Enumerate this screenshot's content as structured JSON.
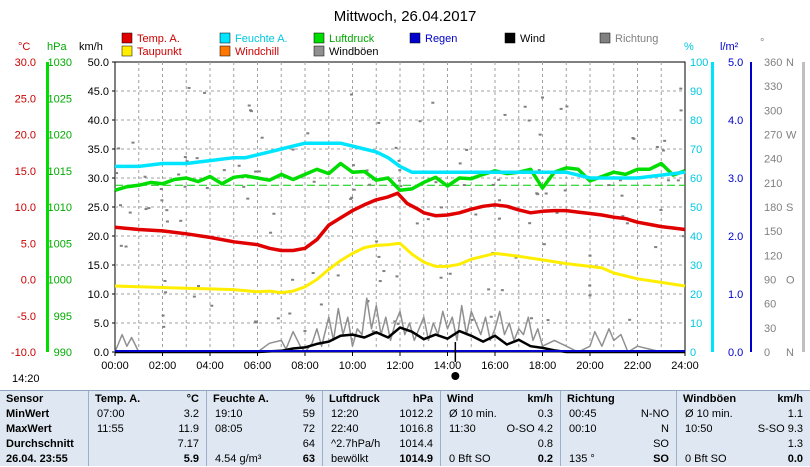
{
  "title": "Mittwoch, 26.04.2017",
  "colors": {
    "temp": "#e00000",
    "dew": "#ffee00",
    "humidity": "#00e5ff",
    "pressure": "#00dd00",
    "wind": "#000000",
    "gust": "#909090",
    "direction": "#808080",
    "rain": "#0000cc",
    "windchill": "#ff7700",
    "plot_bg": "#ffffff",
    "grid": "#a0a0a0",
    "table_bg": "#dfe8f2"
  },
  "legend": [
    {
      "label": "Temp. A.",
      "color": "#e00000",
      "text_color": "#cc0000"
    },
    {
      "label": "Feuchte A.",
      "color": "#00e5ff",
      "text_color": "#00c8e0"
    },
    {
      "label": "Luftdruck",
      "color": "#00dd00",
      "text_color": "#00aa00"
    },
    {
      "label": "Regen",
      "color": "#0000cc",
      "text_color": "#0000cc"
    },
    {
      "label": "Wind",
      "color": "#000000",
      "text_color": "#000000"
    },
    {
      "label": "Richtung",
      "color": "#808080",
      "text_color": "#808080"
    },
    {
      "label": "Taupunkt",
      "color": "#ffee00",
      "text_color": "#cc0000"
    },
    {
      "label": "Windchill",
      "color": "#ff7700",
      "text_color": "#cc0000"
    },
    {
      "label": "Windböen",
      "color": "#909090",
      "text_color": "#000000"
    }
  ],
  "units": {
    "temp": "°C",
    "pressure": "hPa",
    "wind": "km/h",
    "humidity": "%",
    "rain": "l/m²",
    "direction": "°"
  },
  "chart_data": {
    "type": "line",
    "title": "Mittwoch, 26.04.2017",
    "x_ticks": [
      "00:00",
      "02:00",
      "04:00",
      "06:00",
      "08:00",
      "10:00",
      "12:00",
      "14:00",
      "16:00",
      "18:00",
      "20:00",
      "22:00",
      "24:00"
    ],
    "axes": {
      "temp": {
        "label": "°C",
        "min": -10,
        "max": 30,
        "ticks": [
          "-10.0",
          "-5.0",
          "0.0",
          "5.0",
          "10.0",
          "15.0",
          "20.0",
          "25.0",
          "30.0"
        ]
      },
      "pressure": {
        "label": "hPa",
        "min": 990,
        "max": 1030,
        "ticks": [
          "990",
          "995",
          "1000",
          "1005",
          "1010",
          "1015",
          "1020",
          "1025",
          "1030"
        ]
      },
      "wind": {
        "label": "km/h",
        "min": 0,
        "max": 50,
        "ticks": [
          "0.0",
          "5.0",
          "10.0",
          "15.0",
          "20.0",
          "25.0",
          "30.0",
          "35.0",
          "40.0",
          "45.0",
          "50.0"
        ]
      },
      "humidity": {
        "label": "%",
        "min": 0,
        "max": 100,
        "ticks": [
          "0",
          "10",
          "20",
          "30",
          "40",
          "50",
          "60",
          "70",
          "80",
          "90",
          "100"
        ]
      },
      "rain": {
        "label": "l/m²",
        "min": 0,
        "max": 5,
        "ticks": [
          "0.0",
          "1.0",
          "2.0",
          "3.0",
          "4.0",
          "5.0"
        ]
      },
      "direction": {
        "label": "°",
        "min": 0,
        "max": 360,
        "ticks": [
          "0",
          "30",
          "60",
          "90",
          "120",
          "150",
          "180",
          "210",
          "240",
          "270",
          "300",
          "330",
          "360"
        ]
      },
      "compass": [
        "N",
        "O",
        "S",
        "W",
        "N"
      ]
    },
    "series": [
      {
        "name": "Temp. A.",
        "axis": "temp",
        "color": "#e00000",
        "width": 3.5,
        "x": [
          0,
          1,
          2,
          3,
          4,
          5,
          6,
          6.5,
          7,
          7.5,
          8,
          8.5,
          9,
          9.5,
          10,
          10.5,
          11,
          11.5,
          11.9,
          12.3,
          12.7,
          13,
          13.5,
          14,
          14.5,
          15,
          15.5,
          16,
          16.5,
          17,
          17.5,
          18,
          18.5,
          19,
          19.5,
          20,
          20.5,
          21,
          21.5,
          22,
          22.5,
          23,
          23.5,
          24
        ],
        "y": [
          7.2,
          6.9,
          6.7,
          6.3,
          5.8,
          5.2,
          4.8,
          4.3,
          4.0,
          4.0,
          4.3,
          5.5,
          7.5,
          8.5,
          9.5,
          10.3,
          11.0,
          11.4,
          11.9,
          10.5,
          9.8,
          9.2,
          8.8,
          8.9,
          9.2,
          9.7,
          10.1,
          10.3,
          10.1,
          9.6,
          9.2,
          9.4,
          9.5,
          9.5,
          9.3,
          9.1,
          8.9,
          8.6,
          8.4,
          7.9,
          7.6,
          7.3,
          7.1,
          6.9
        ]
      },
      {
        "name": "Taupunkt",
        "axis": "temp",
        "color": "#ffee00",
        "width": 3,
        "x": [
          0,
          1,
          2,
          3,
          4,
          5,
          6,
          6.5,
          7,
          7.5,
          8,
          8.5,
          9,
          9.5,
          10,
          10.5,
          11,
          11.5,
          12,
          12.5,
          13,
          13.5,
          14,
          14.5,
          15,
          15.5,
          16,
          16.5,
          17,
          18,
          19,
          20,
          20.5,
          21,
          22,
          23,
          24
        ],
        "y": [
          -0.9,
          -1.0,
          -1.1,
          -1.2,
          -1.3,
          -1.4,
          -1.7,
          -1.6,
          -1.8,
          -1.6,
          -1.0,
          0.0,
          1.4,
          2.6,
          3.6,
          4.4,
          4.7,
          4.8,
          5.0,
          3.5,
          2.4,
          1.8,
          1.8,
          2.1,
          2.8,
          3.2,
          3.6,
          3.4,
          3.2,
          2.7,
          2.2,
          1.8,
          1.6,
          0.9,
          0.1,
          -0.4,
          -0.9
        ]
      },
      {
        "name": "Feuchte A.",
        "axis": "humidity",
        "color": "#00e5ff",
        "width": 3.5,
        "x": [
          0,
          1,
          2,
          3,
          4,
          5,
          5.5,
          6,
          6.5,
          7,
          7.5,
          8,
          8.5,
          9,
          9.5,
          10,
          10.5,
          11,
          11.5,
          12,
          12.5,
          13,
          14,
          15,
          16,
          17,
          18,
          19,
          20,
          21,
          22,
          23,
          24
        ],
        "y": [
          64,
          64,
          65,
          65,
          66,
          67,
          67,
          68,
          69,
          70,
          71,
          72,
          72,
          72,
          72,
          71,
          70,
          69,
          67,
          64,
          62,
          62,
          62,
          62,
          62,
          62,
          62,
          62,
          60,
          60,
          60,
          61,
          62
        ]
      },
      {
        "name": "Luftdruck",
        "axis": "pressure",
        "color": "#00dd00",
        "width": 3.5,
        "x": [
          0,
          0.5,
          1,
          1.5,
          2,
          2.5,
          3,
          3.5,
          4,
          4.5,
          5,
          5.5,
          6,
          6.5,
          7,
          7.5,
          8,
          8.5,
          9,
          9.5,
          10,
          10.5,
          11,
          11.5,
          12,
          12.5,
          13,
          13.5,
          14,
          14.5,
          15,
          15.5,
          16,
          16.5,
          17,
          17.5,
          18,
          18.5,
          19,
          19.5,
          20,
          20.5,
          21,
          21.5,
          22,
          22.5,
          23,
          23.5,
          24
        ],
        "y": [
          1012.3,
          1012.8,
          1013.0,
          1013.4,
          1013.2,
          1013.8,
          1014.0,
          1013.5,
          1014.2,
          1013.2,
          1014.1,
          1014.3,
          1014.0,
          1013.7,
          1014.5,
          1013.8,
          1014.5,
          1015.2,
          1014.6,
          1016.0,
          1014.8,
          1014.9,
          1013.7,
          1014.0,
          1012.3,
          1012.5,
          1013.4,
          1014.1,
          1012.9,
          1014.0,
          1013.9,
          1014.5,
          1015.0,
          1014.6,
          1014.8,
          1015.2,
          1012.6,
          1014.8,
          1015.4,
          1015.2,
          1013.6,
          1014.2,
          1014.8,
          1014.5,
          1015.2,
          1015.2,
          1016.0,
          1014.4,
          1015.0
        ]
      },
      {
        "name": "Windböen",
        "axis": "wind",
        "color": "#909090",
        "width": 1.5,
        "x": [
          0,
          0.3,
          0.5,
          0.7,
          1,
          2,
          3,
          4,
          5,
          6,
          6.5,
          7,
          7.2,
          7.5,
          7.8,
          8,
          8.3,
          8.5,
          8.7,
          9,
          9.2,
          9.4,
          9.6,
          9.8,
          10,
          10.2,
          10.4,
          10.6,
          10.8,
          11,
          11.2,
          11.4,
          11.6,
          11.8,
          12,
          12.2,
          12.4,
          12.6,
          12.8,
          13,
          13.2,
          13.4,
          13.6,
          13.8,
          14,
          14.2,
          14.4,
          14.6,
          14.8,
          15,
          15.2,
          15.4,
          15.6,
          15.8,
          16,
          16.2,
          16.4,
          16.6,
          16.8,
          17,
          17.2,
          17.4,
          17.6,
          17.8,
          18,
          18.5,
          19,
          19.5,
          20,
          20.2,
          20.5,
          20.8,
          21,
          21.3,
          21.6,
          22,
          22.5,
          23,
          23.5,
          24
        ],
        "y": [
          0,
          3,
          1,
          2.5,
          0,
          0,
          0,
          0,
          0,
          0,
          1.5,
          2,
          0.5,
          3.5,
          1,
          0,
          1.5,
          4,
          1,
          6,
          2,
          7.5,
          3,
          6,
          1,
          4,
          3,
          9.3,
          4,
          8,
          3,
          6,
          2,
          5,
          7,
          3,
          5,
          2,
          4,
          6,
          2,
          5,
          3,
          7,
          4,
          6,
          2,
          8,
          3,
          7,
          5,
          3,
          6,
          2,
          4,
          7,
          3,
          5,
          2,
          4,
          3,
          6,
          2,
          4,
          1,
          2,
          1,
          0,
          1,
          3.5,
          1,
          4,
          2,
          3,
          0,
          1,
          0.5,
          0,
          0,
          0
        ]
      },
      {
        "name": "Wind",
        "axis": "wind",
        "color": "#000000",
        "width": 2.5,
        "x": [
          0,
          6,
          7,
          7.5,
          8,
          8.5,
          9,
          9.5,
          10,
          10.5,
          11,
          11.5,
          12,
          12.5,
          13,
          13.5,
          14,
          14.5,
          15,
          15.5,
          16,
          16.5,
          17,
          17.5,
          18,
          18.5,
          19,
          24
        ],
        "y": [
          0,
          0,
          0.2,
          0.6,
          0.8,
          1.4,
          1.8,
          2.8,
          3.0,
          2.5,
          3.4,
          2.5,
          4.2,
          3.5,
          2.2,
          3.0,
          2.3,
          3.6,
          2.8,
          1.8,
          2.8,
          1.3,
          2.1,
          1.0,
          0.7,
          0.3,
          0,
          0
        ]
      }
    ],
    "events": [
      {
        "label": "14:20",
        "x": 14.33
      }
    ]
  },
  "table": {
    "columns": [
      {
        "header": "Sensor"
      },
      {
        "header": "Temp. A.",
        "unit": "°C"
      },
      {
        "header": "Feuchte A.",
        "unit": "%"
      },
      {
        "header": "Luftdruck",
        "unit": "hPa"
      },
      {
        "header": "Wind",
        "unit": "km/h"
      },
      {
        "header": "Richtung",
        "unit": ""
      },
      {
        "header": "Windböen",
        "unit": "km/h"
      }
    ],
    "rows": [
      {
        "label": "MinWert",
        "cells": [
          [
            "07:00",
            "3.2"
          ],
          [
            "19:10",
            "59"
          ],
          [
            "12:20",
            "1012.2"
          ],
          [
            "Ø 10 min.",
            "0.3"
          ],
          [
            "00:45",
            "N-NO"
          ],
          [
            "Ø 10 min.",
            "1.1"
          ]
        ]
      },
      {
        "label": "MaxWert",
        "cells": [
          [
            "11:55",
            "11.9"
          ],
          [
            "08:05",
            "72"
          ],
          [
            "22:40",
            "1016.8"
          ],
          [
            "11:30",
            "O-SO 4.2"
          ],
          [
            "00:10",
            "N"
          ],
          [
            "10:50",
            "S-SO 9.3"
          ]
        ]
      },
      {
        "label": "Durchschnitt",
        "cells": [
          [
            "",
            "7.17"
          ],
          [
            "",
            "64"
          ],
          [
            "^2.7hPa/h",
            "1014.4"
          ],
          [
            "",
            "0.8"
          ],
          [
            "",
            "SO"
          ],
          [
            "",
            "1.3"
          ]
        ]
      },
      {
        "label": "26.04. 23:55",
        "cells": [
          [
            "",
            "5.9"
          ],
          [
            "4.54 g/m³",
            "63"
          ],
          [
            "bewölkt",
            "1014.9"
          ],
          [
            "0 Bft SO",
            "0.2"
          ],
          [
            "135 °",
            "SO"
          ],
          [
            "0 Bft SO",
            "0.0"
          ]
        ]
      }
    ]
  }
}
